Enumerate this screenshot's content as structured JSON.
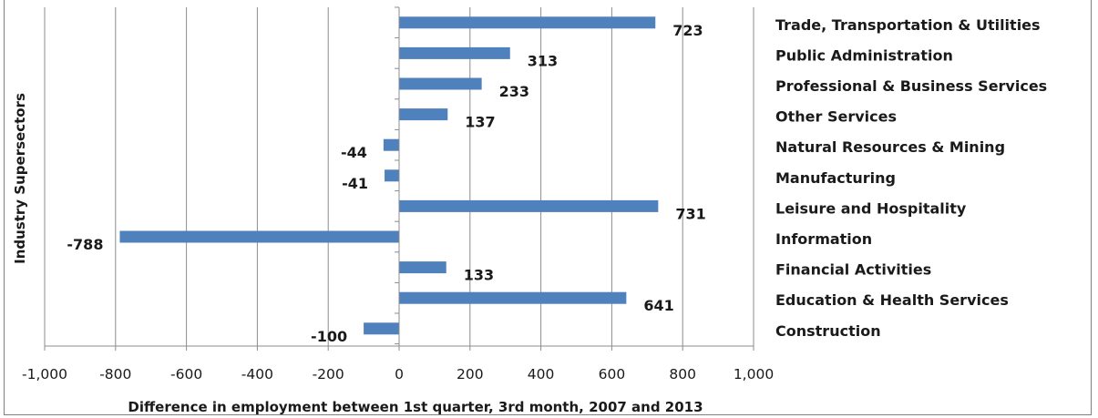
{
  "chart_data": {
    "type": "bar",
    "orientation": "horizontal",
    "categories": [
      "Trade, Transportation & Utilities",
      "Public Administration",
      "Professional & Business Services",
      "Other Services",
      "Natural Resources & Mining",
      "Manufacturing",
      "Leisure and Hospitality",
      "Information",
      "Financial Activities",
      "Education & Health Services",
      "Construction"
    ],
    "values": [
      723,
      313,
      233,
      137,
      -44,
      -41,
      731,
      -788,
      133,
      641,
      -100
    ],
    "data_labels": [
      "723",
      "313",
      "233",
      "137",
      "-44",
      "-41",
      "731",
      "-788",
      "133",
      "641",
      "-100"
    ],
    "xlabel": "Difference in employment between 1st quarter, 3rd month, 2007 and 2013",
    "ylabel": "Industry Supersectors",
    "xlim": [
      -1000,
      1000
    ],
    "xticks": [
      -1000,
      -800,
      -600,
      -400,
      -200,
      0,
      200,
      400,
      600,
      800,
      1000
    ],
    "xtick_labels": [
      "-1,000",
      "-800",
      "-600",
      "-400",
      "-200",
      "0",
      "200",
      "400",
      "600",
      "800",
      "1,000"
    ],
    "bar_color": "#4f81bd",
    "grid": "vertical major gridlines",
    "legend": "none"
  }
}
